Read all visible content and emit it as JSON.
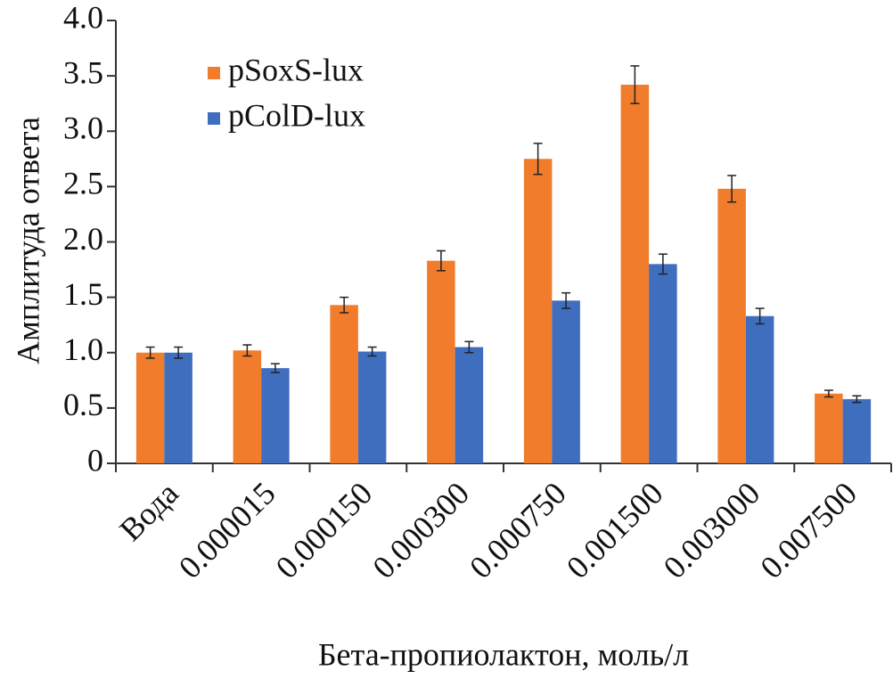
{
  "chart_data": {
    "type": "bar",
    "y_label": "Амплитуда ответа",
    "x_label": "Бета-пропиолактон, моль/л",
    "categories": [
      "Вода",
      "0.000015",
      "0.000150",
      "0.000300",
      "0.000750",
      "0.001500",
      "0.003000",
      "0.007500"
    ],
    "series": [
      {
        "name": "pSoxS-lux",
        "color": "#f07c2c",
        "values": [
          1.0,
          1.02,
          1.43,
          1.83,
          2.75,
          3.42,
          2.48,
          0.63
        ],
        "errors": [
          0.05,
          0.05,
          0.07,
          0.09,
          0.14,
          0.17,
          0.12,
          0.03
        ]
      },
      {
        "name": "pColD-lux",
        "color": "#3f6ebf",
        "values": [
          1.0,
          0.86,
          1.01,
          1.05,
          1.47,
          1.8,
          1.33,
          0.58
        ],
        "errors": [
          0.05,
          0.04,
          0.04,
          0.05,
          0.07,
          0.09,
          0.07,
          0.03
        ]
      }
    ],
    "ylim": [
      0,
      4.0
    ],
    "yticks": [
      0,
      0.5,
      {
        "value": 1.0,
        "label": "1.0"
      },
      1.5,
      {
        "value": 2.0,
        "label": "2.0"
      },
      2.5,
      {
        "value": 3.0,
        "label": "3.0"
      },
      3.5,
      {
        "value": 4.0,
        "label": "4.0"
      }
    ],
    "grid": false,
    "legend": "top-left"
  }
}
